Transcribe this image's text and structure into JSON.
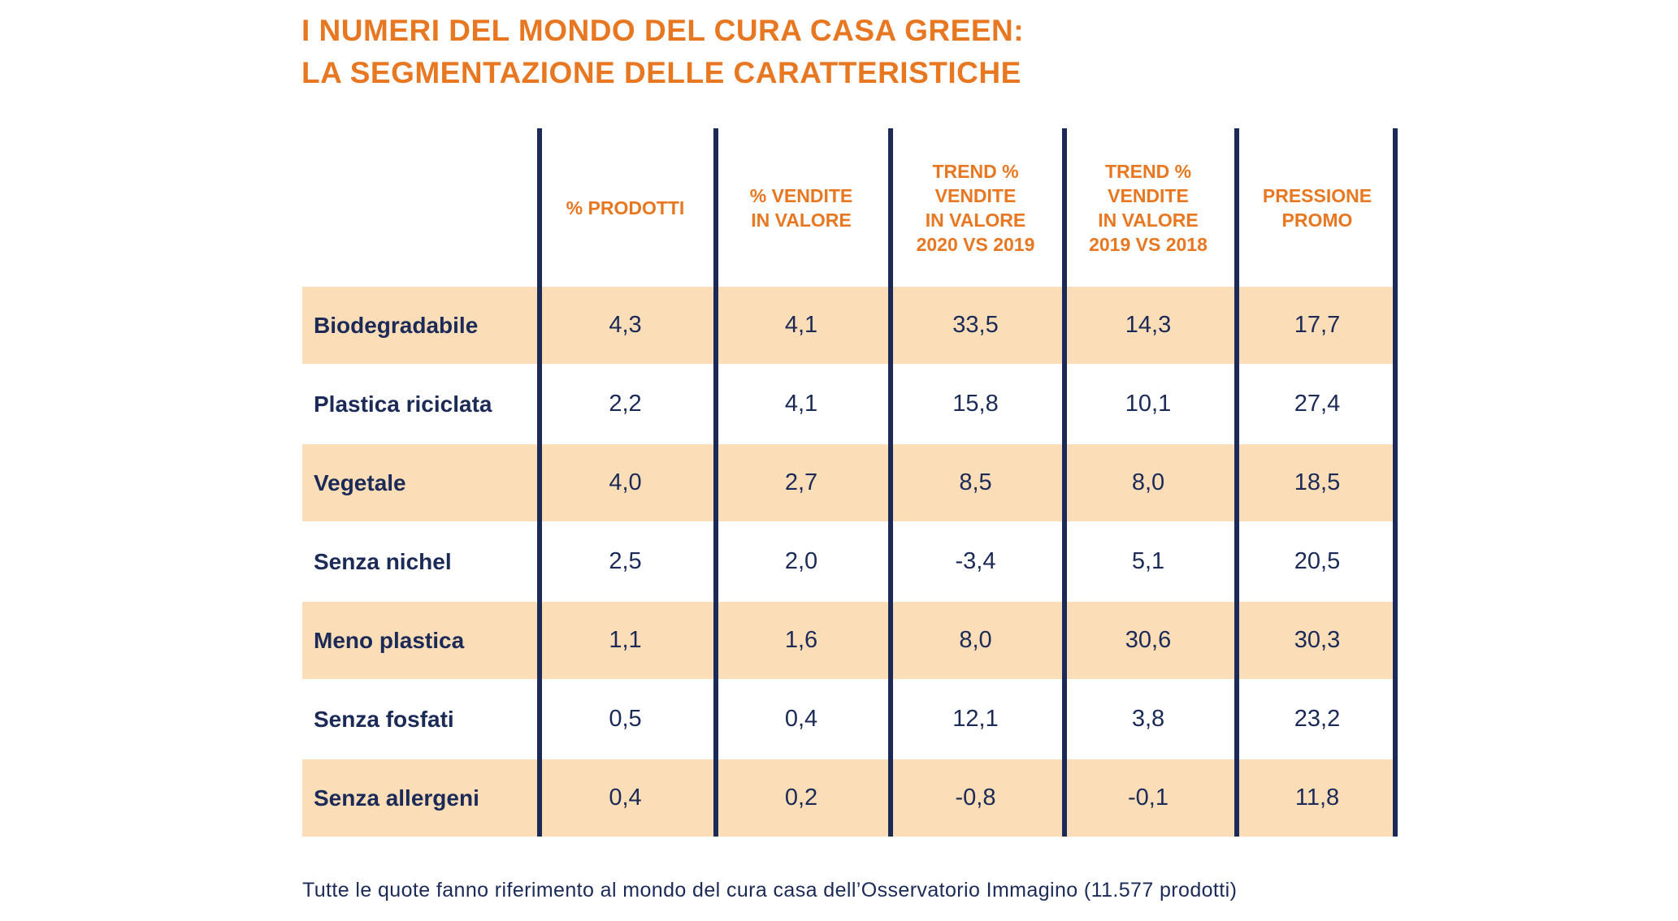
{
  "title": {
    "line1": "I NUMERI DEL MONDO DEL CURA CASA GREEN:",
    "line2": "LA SEGMENTAZIONE DELLE CARATTERISTICHE"
  },
  "table": {
    "headers": [
      "",
      "% PRODOTTI",
      "% VENDITE\nIN VALORE",
      "TREND %\nVENDITE\nIN VALORE\n2020 VS 2019",
      "TREND %\nVENDITE\nIN VALORE\n2019 VS 2018",
      "PRESSIONE\nPROMO"
    ],
    "rows": [
      {
        "label": "Biodegradabile",
        "values": [
          "4,3",
          "4,1",
          "33,5",
          "14,3",
          "17,7"
        ],
        "shaded": true
      },
      {
        "label": "Plastica riciclata",
        "values": [
          "2,2",
          "4,1",
          "15,8",
          "10,1",
          "27,4"
        ],
        "shaded": false
      },
      {
        "label": "Vegetale",
        "values": [
          "4,0",
          "2,7",
          "8,5",
          "8,0",
          "18,5"
        ],
        "shaded": true
      },
      {
        "label": "Senza nichel",
        "values": [
          "2,5",
          "2,0",
          "-3,4",
          "5,1",
          "20,5"
        ],
        "shaded": false
      },
      {
        "label": "Meno plastica",
        "values": [
          "1,1",
          "1,6",
          "8,0",
          "30,6",
          "30,3"
        ],
        "shaded": true
      },
      {
        "label": "Senza fosfati",
        "values": [
          "0,5",
          "0,4",
          "12,1",
          "3,8",
          "23,2"
        ],
        "shaded": false
      },
      {
        "label": "Senza allergeni",
        "values": [
          "0,4",
          "0,2",
          "-0,8",
          "-0,1",
          "11,8"
        ],
        "shaded": true
      }
    ]
  },
  "footnote": "Tutte le quote fanno riferimento al mondo del cura casa dell’Osservatorio Immagino (11.577 prodotti)",
  "colors": {
    "accent": "#e87722",
    "navy": "#1b2a57",
    "band": "#fbddb8"
  }
}
